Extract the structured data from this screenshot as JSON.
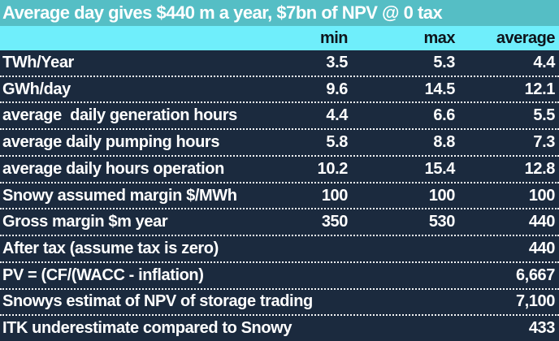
{
  "title": "Average day gives $440 m a year, $7bn of NPV @ 0 tax",
  "colors": {
    "title_bg": "#55BEC5",
    "header_bg": "#6FEEFB",
    "body_bg": "#1B2A3E",
    "body_text": "#FFFFFF",
    "header_text": "#0E141B"
  },
  "chart_data": {
    "type": "table",
    "title": "Average day gives $440 m a year, $7bn of NPV @ 0 tax",
    "columns": [
      "",
      "min",
      "max",
      "average"
    ],
    "rows": [
      {
        "label": "TWh/Year",
        "min": "3.5",
        "max": "5.3",
        "average": "4.4"
      },
      {
        "label": "GWh/day",
        "min": "9.6",
        "max": "14.5",
        "average": "12.1"
      },
      {
        "label": "average  daily generation hours",
        "min": "4.4",
        "max": "6.6",
        "average": "5.5"
      },
      {
        "label": "average daily pumping hours",
        "min": "5.8",
        "max": "8.8",
        "average": "7.3"
      },
      {
        "label": "average daily hours operation",
        "min": "10.2",
        "max": "15.4",
        "average": "12.8"
      },
      {
        "label": "Snowy assumed margin $/MWh",
        "min": "100",
        "max": "100",
        "average": "100"
      },
      {
        "label": "Gross margin $m year",
        "min": "350",
        "max": "530",
        "average": "440"
      },
      {
        "label": "After tax (assume tax is zero)",
        "min": "",
        "max": "",
        "average": "440"
      },
      {
        "label": "PV = (CF/(WACC - inflation)",
        "min": "",
        "max": "",
        "average": "6,667"
      },
      {
        "label": "Snowys estimat of NPV of storage trading",
        "min": "",
        "max": "",
        "average": "7,100"
      },
      {
        "label": "ITK underestimate compared to Snowy",
        "min": "",
        "max": "",
        "average": "433"
      }
    ]
  }
}
